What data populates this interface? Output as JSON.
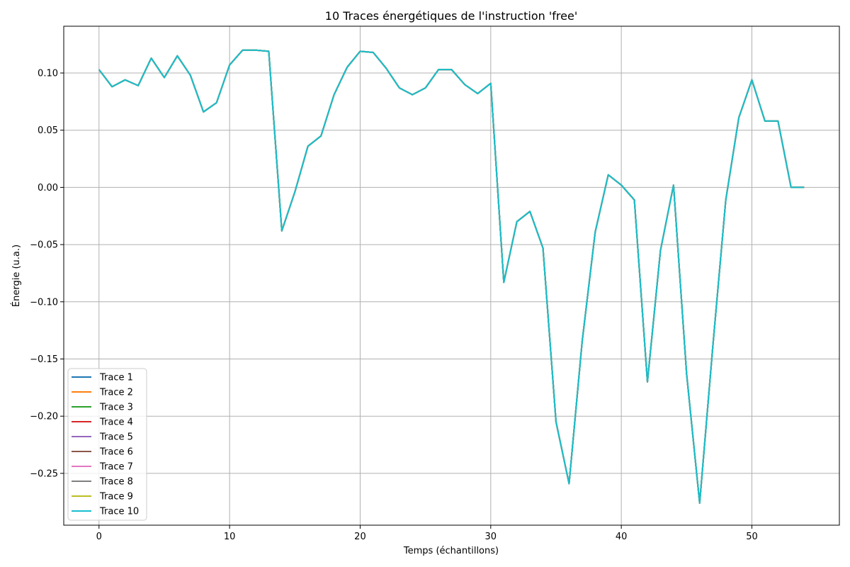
{
  "chart_data": {
    "type": "line",
    "title": "10 Traces énergétiques de l'instruction 'free'",
    "xlabel": "Temps (échantillons)",
    "ylabel": "Énergie (u.a.)",
    "xlim": [
      -2.7,
      56.7
    ],
    "ylim": [
      -0.2953,
      0.1409
    ],
    "xticks": [
      0,
      10,
      20,
      30,
      40,
      50
    ],
    "xtick_labels": [
      "0",
      "10",
      "20",
      "30",
      "40",
      "50"
    ],
    "yticks": [
      0.1,
      0.05,
      0.0,
      -0.05,
      -0.1,
      -0.15,
      -0.2,
      -0.25
    ],
    "ytick_labels": [
      "0.10",
      "0.05",
      "0.00",
      "−0.05",
      "−0.10",
      "−0.15",
      "−0.20",
      "−0.25"
    ],
    "grid": true,
    "legend_position": "lower-left",
    "x": [
      0,
      1,
      2,
      3,
      4,
      5,
      6,
      7,
      8,
      9,
      10,
      11,
      12,
      13,
      14,
      15,
      16,
      17,
      18,
      19,
      20,
      21,
      22,
      23,
      24,
      25,
      26,
      27,
      28,
      29,
      30,
      31,
      32,
      33,
      34,
      35,
      36,
      37,
      38,
      39,
      40,
      41,
      42,
      43,
      44,
      45,
      46,
      47,
      48,
      49,
      50,
      51,
      52,
      53,
      54
    ],
    "shared_values": [
      0.103,
      0.088,
      0.094,
      0.089,
      0.113,
      0.096,
      0.115,
      0.098,
      0.066,
      0.074,
      0.107,
      0.12,
      0.12,
      0.119,
      -0.038,
      -0.004,
      0.036,
      0.045,
      0.081,
      0.105,
      0.119,
      0.118,
      0.104,
      0.087,
      0.081,
      0.087,
      0.103,
      0.103,
      0.09,
      0.082,
      0.091,
      -0.083,
      -0.03,
      -0.021,
      -0.053,
      -0.205,
      -0.259,
      -0.135,
      -0.039,
      0.011,
      0.002,
      -0.011,
      -0.17,
      -0.055,
      0.002,
      -0.163,
      -0.276,
      -0.14,
      -0.011,
      0.061,
      0.094,
      0.058,
      0.058,
      0.0,
      0.0
    ],
    "series": [
      {
        "name": "Trace 1",
        "color": "#1f77b4"
      },
      {
        "name": "Trace 2",
        "color": "#ff7f0e"
      },
      {
        "name": "Trace 3",
        "color": "#2ca02c"
      },
      {
        "name": "Trace 4",
        "color": "#d62728"
      },
      {
        "name": "Trace 5",
        "color": "#9467bd"
      },
      {
        "name": "Trace 6",
        "color": "#8c564b"
      },
      {
        "name": "Trace 7",
        "color": "#e377c2"
      },
      {
        "name": "Trace 8",
        "color": "#7f7f7f"
      },
      {
        "name": "Trace 9",
        "color": "#bcbd22"
      },
      {
        "name": "Trace 10",
        "color": "#17becf"
      }
    ]
  }
}
